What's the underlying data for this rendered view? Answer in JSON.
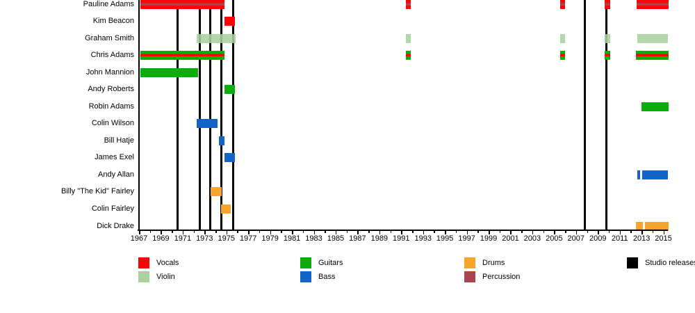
{
  "chart_data": {
    "type": "timeline-gantt",
    "description": "Band members timeline (Gantt-style) with instrument roles and studio release markers",
    "x_axis": {
      "start": 1967,
      "end": 2015,
      "label_step": 2,
      "minor_tick_step": 1,
      "tick_labels": [
        "1967",
        "1969",
        "1971",
        "1973",
        "1975",
        "1977",
        "1979",
        "1981",
        "1983",
        "1985",
        "1987",
        "1989",
        "1991",
        "1993",
        "1995",
        "1997",
        "1999",
        "2001",
        "2003",
        "2005",
        "2007",
        "2009",
        "2011",
        "2013",
        "2015"
      ]
    },
    "colors": {
      "vocals": "#fa0505",
      "violin": "#a7d29f",
      "guitars": "#0bad0b",
      "bass": "#1464c8",
      "drums": "#f8a32a",
      "percussion": "#a8454e",
      "studio": "#000000"
    },
    "members": [
      {
        "name": "Pauline Adams",
        "roles": [
          "Vocals",
          "Percussion"
        ],
        "base": "vocals",
        "stripe": "percussion",
        "segments": [
          [
            1967.1,
            1974.85
          ],
          [
            1991.45,
            1991.9
          ],
          [
            2005.55,
            2006.0
          ],
          [
            2009.6,
            2010.1
          ],
          [
            2012.55,
            2015.45
          ]
        ]
      },
      {
        "name": "Kim Beacon",
        "roles": [
          "Vocals"
        ],
        "base": "vocals",
        "segments": [
          [
            1974.8,
            1975.8
          ]
        ]
      },
      {
        "name": "Graham Smith",
        "roles": [
          "Violin"
        ],
        "base": "violin",
        "segments": [
          [
            1972.3,
            1975.85
          ],
          [
            1991.45,
            1991.9
          ],
          [
            2005.55,
            2006.0
          ],
          [
            2009.6,
            2010.1
          ],
          [
            2012.6,
            2015.4
          ]
        ]
      },
      {
        "name": "Chris Adams",
        "roles": [
          "Guitars",
          "Vocals"
        ],
        "base": "guitars",
        "stripe": "vocals",
        "segments": [
          [
            1967.1,
            1974.8
          ],
          [
            1991.45,
            1991.9
          ],
          [
            2005.55,
            2006.0
          ],
          [
            2009.6,
            2010.1
          ],
          [
            2012.5,
            2015.45
          ]
        ]
      },
      {
        "name": "John Mannion",
        "roles": [
          "Guitars"
        ],
        "base": "guitars",
        "segments": [
          [
            1967.1,
            1972.4
          ]
        ]
      },
      {
        "name": "Andy Roberts",
        "roles": [
          "Guitars"
        ],
        "base": "guitars",
        "segments": [
          [
            1974.8,
            1975.8
          ]
        ]
      },
      {
        "name": "Robin Adams",
        "roles": [
          "Guitars"
        ],
        "base": "guitars",
        "segments": [
          [
            2013.0,
            2015.45
          ]
        ]
      },
      {
        "name": "Colin Wilson",
        "roles": [
          "Bass"
        ],
        "base": "bass",
        "segments": [
          [
            1972.3,
            1974.2
          ]
        ]
      },
      {
        "name": "Bill Hatje",
        "roles": [
          "Bass"
        ],
        "base": "bass",
        "segments": [
          [
            1974.3,
            1974.8
          ]
        ]
      },
      {
        "name": "James Exel",
        "roles": [
          "Bass"
        ],
        "base": "bass",
        "segments": [
          [
            1974.8,
            1975.8
          ]
        ]
      },
      {
        "name": "Andy Allan",
        "roles": [
          "Bass"
        ],
        "base": "bass",
        "segments": [
          [
            2012.6,
            2012.85
          ],
          [
            2013.05,
            2015.4
          ]
        ]
      },
      {
        "name": "Billy \"The Kid\" Fairley",
        "roles": [
          "Drums"
        ],
        "base": "drums",
        "segments": [
          [
            1973.55,
            1974.6
          ]
        ]
      },
      {
        "name": "Colin Fairley",
        "roles": [
          "Drums"
        ],
        "base": "drums",
        "segments": [
          [
            1974.5,
            1975.4
          ]
        ]
      },
      {
        "name": "Dick Drake",
        "roles": [
          "Drums"
        ],
        "base": "drums",
        "segments": [
          [
            2012.5,
            2013.1
          ],
          [
            2013.3,
            2015.5
          ]
        ]
      }
    ],
    "studio_releases": [
      1970.55,
      1972.55,
      1973.55,
      1974.55,
      1975.6,
      2007.8,
      2009.75
    ],
    "legend": {
      "position": "bottom",
      "columns": [
        [
          {
            "label": "Vocals",
            "color": "vocals"
          },
          {
            "label": "Violin",
            "color": "violin"
          }
        ],
        [
          {
            "label": "Guitars",
            "color": "guitars"
          },
          {
            "label": "Bass",
            "color": "bass"
          }
        ],
        [
          {
            "label": "Drums",
            "color": "drums"
          },
          {
            "label": "Percussion",
            "color": "percussion"
          }
        ],
        [
          {
            "label": "Studio releases",
            "color": "studio"
          }
        ]
      ]
    }
  }
}
